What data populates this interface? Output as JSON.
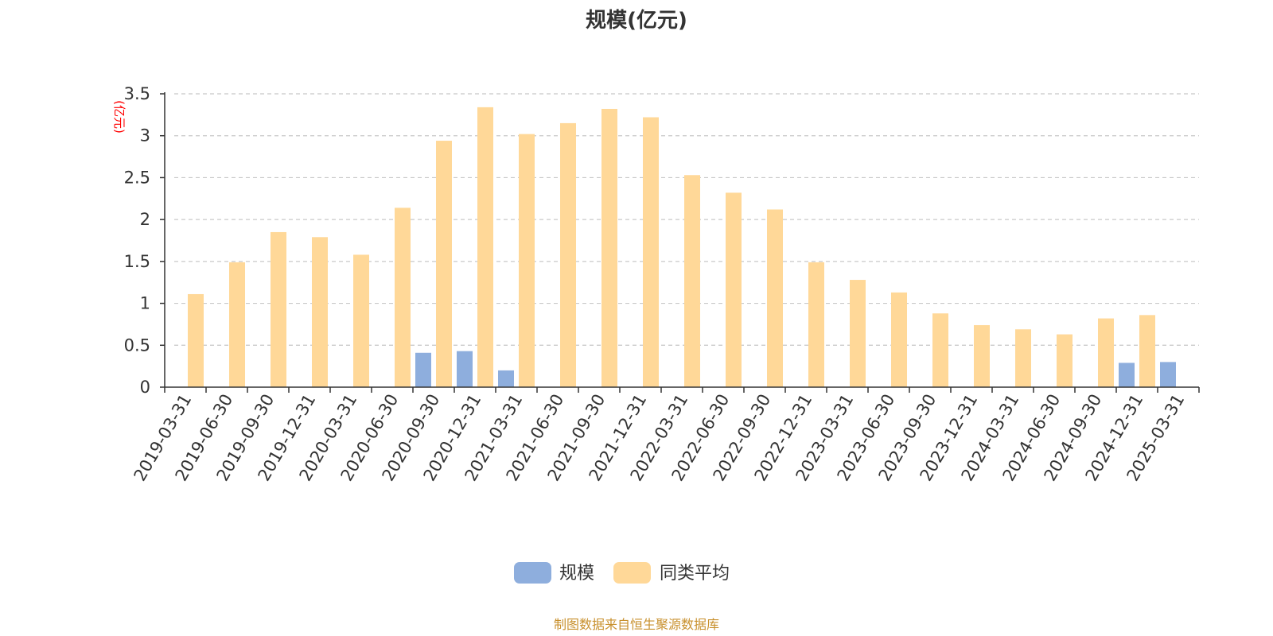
{
  "chart_data": {
    "type": "bar",
    "title": "规模(亿元)",
    "ylabel": "(亿元)",
    "xlabel": "",
    "ylim": [
      0,
      3.5
    ],
    "yticks": [
      "0",
      "0.5",
      "1",
      "1.5",
      "2",
      "2.5",
      "3",
      "3.5"
    ],
    "grid": true,
    "legend_position": "bottom",
    "categories": [
      "2019-03-31",
      "2019-06-30",
      "2019-09-30",
      "2019-12-31",
      "2020-03-31",
      "2020-06-30",
      "2020-09-30",
      "2020-12-31",
      "2021-03-31",
      "2021-06-30",
      "2021-09-30",
      "2021-12-31",
      "2022-03-31",
      "2022-06-30",
      "2022-09-30",
      "2022-12-31",
      "2023-03-31",
      "2023-06-30",
      "2023-09-30",
      "2023-12-31",
      "2024-03-31",
      "2024-06-30",
      "2024-09-30",
      "2024-12-31",
      "2025-03-31"
    ],
    "series": [
      {
        "name": "规模",
        "color": "#8eaedd",
        "values": [
          null,
          null,
          null,
          null,
          null,
          null,
          0.41,
          0.43,
          0.2,
          null,
          null,
          null,
          null,
          null,
          null,
          null,
          null,
          null,
          null,
          null,
          null,
          null,
          null,
          0.29,
          0.3
        ]
      },
      {
        "name": "同类平均",
        "color": "#ffd898",
        "values": [
          1.11,
          1.49,
          1.85,
          1.79,
          1.58,
          2.14,
          2.94,
          3.34,
          3.02,
          3.15,
          3.32,
          3.22,
          2.53,
          2.32,
          2.12,
          1.49,
          1.28,
          1.13,
          0.88,
          0.74,
          0.69,
          0.63,
          0.82,
          0.86,
          null
        ]
      }
    ]
  },
  "source_note": "制图数据来自恒生聚源数据库",
  "source_color": "#c8902d"
}
